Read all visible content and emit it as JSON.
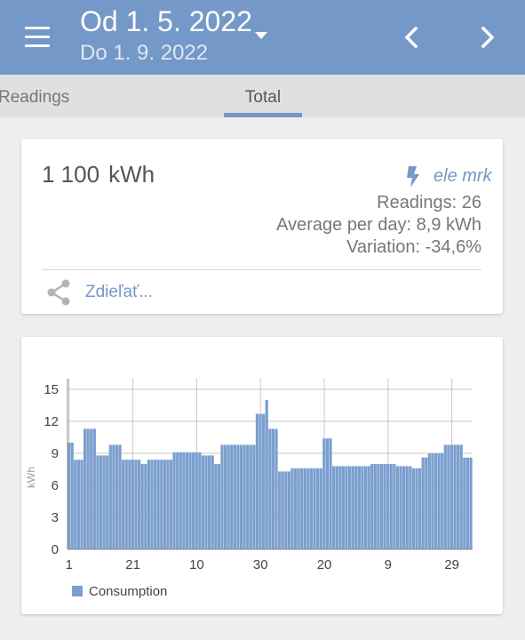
{
  "header": {
    "date_from": "Od 1. 5. 2022",
    "date_to": "Do 1. 9. 2022"
  },
  "tabs": [
    {
      "label": "Readings",
      "selected": false
    },
    {
      "label": "Total",
      "selected": true
    }
  ],
  "summary": {
    "total_value": "1 100",
    "total_unit": "kWh",
    "meter_icon": "lightning-bolt-icon",
    "meter_name": "ele mrk",
    "readings": "Readings: 26",
    "average_per_day": "Average per day: 8,9 kWh",
    "variation": "Variation: -34,6%",
    "share_label": "Zdieľať..."
  },
  "colors": {
    "primary": "#7498c7",
    "bar": "#7b9fcf"
  },
  "chart_data": {
    "type": "bar",
    "ylabel": "kWh",
    "ylim": [
      0,
      16
    ],
    "yticks": [
      0,
      3,
      6,
      9,
      12,
      15
    ],
    "x_tick_labels": [
      {
        "index": 0,
        "label": "1"
      },
      {
        "index": 20,
        "label": "21"
      },
      {
        "index": 40,
        "label": "10"
      },
      {
        "index": 60,
        "label": "30"
      },
      {
        "index": 80,
        "label": "20"
      },
      {
        "index": 100,
        "label": "9"
      },
      {
        "index": 120,
        "label": "29"
      }
    ],
    "legend": "Consumption",
    "legend_position": "bottom-left",
    "grid": true,
    "series": [
      {
        "name": "Consumption",
        "values": [
          10.0,
          10.0,
          8.4,
          8.4,
          8.4,
          11.3,
          11.3,
          11.3,
          11.3,
          8.8,
          8.8,
          8.8,
          8.8,
          9.8,
          9.8,
          9.8,
          9.8,
          8.4,
          8.4,
          8.4,
          8.4,
          8.4,
          8.4,
          8.0,
          8.0,
          8.4,
          8.4,
          8.4,
          8.4,
          8.4,
          8.4,
          8.4,
          8.4,
          9.1,
          9.1,
          9.1,
          9.1,
          9.1,
          9.1,
          9.1,
          9.1,
          9.1,
          8.8,
          8.8,
          8.8,
          8.8,
          8.0,
          8.0,
          9.8,
          9.8,
          9.8,
          9.8,
          9.8,
          9.8,
          9.8,
          9.8,
          9.8,
          9.8,
          9.8,
          12.7,
          12.7,
          12.7,
          14.0,
          11.3,
          11.3,
          11.3,
          7.3,
          7.3,
          7.3,
          7.3,
          7.6,
          7.6,
          7.6,
          7.6,
          7.6,
          7.6,
          7.6,
          7.6,
          7.6,
          7.6,
          10.4,
          10.4,
          10.4,
          7.8,
          7.8,
          7.8,
          7.8,
          7.8,
          7.8,
          7.8,
          7.8,
          7.8,
          7.8,
          7.8,
          7.8,
          8.0,
          8.0,
          8.0,
          8.0,
          8.0,
          8.0,
          8.0,
          8.0,
          7.8,
          7.8,
          7.8,
          7.8,
          7.8,
          7.6,
          7.6,
          7.6,
          8.6,
          8.6,
          9.0,
          9.0,
          9.0,
          9.0,
          9.0,
          9.8,
          9.8,
          9.8,
          9.8,
          9.8,
          9.8,
          8.6,
          8.6,
          8.6
        ]
      }
    ]
  }
}
